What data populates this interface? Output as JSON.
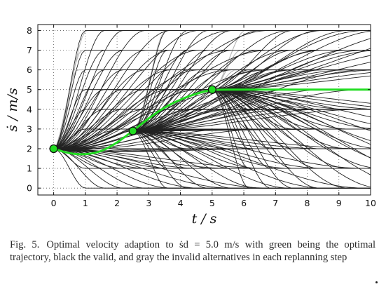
{
  "chart_data": {
    "type": "line",
    "xlabel": "t / s",
    "ylabel": "ṡ / m/s",
    "xlim": [
      -0.5,
      10
    ],
    "ylim": [
      -0.35,
      8.3
    ],
    "xticks": [
      "0",
      "1",
      "2",
      "3",
      "4",
      "5",
      "6",
      "7",
      "8",
      "9",
      "10"
    ],
    "yticks": [
      "0",
      "1",
      "2",
      "3",
      "4",
      "5",
      "6",
      "7",
      "8"
    ],
    "grid": true,
    "colors": {
      "optimal": "#22dd22",
      "valid": "#222222",
      "invalid": "#b4b4b4"
    },
    "optimal_trajectory": {
      "x": [
        0,
        0.5,
        1.0,
        1.5,
        2.0,
        2.5,
        3.0,
        3.5,
        4.0,
        4.5,
        5.0,
        6.0,
        7.0,
        8.0,
        9.0,
        10.0
      ],
      "y": [
        2.0,
        1.75,
        1.7,
        1.85,
        2.3,
        2.9,
        3.55,
        4.1,
        4.5,
        4.8,
        5.0,
        5.0,
        5.0,
        5.0,
        5.0,
        5.0
      ]
    },
    "replanning_points": [
      {
        "x": 0,
        "y": 2.0
      },
      {
        "x": 2.5,
        "y": 2.9
      },
      {
        "x": 5.0,
        "y": 5.0
      }
    ],
    "valid_alternative_targets": [
      0,
      1,
      2,
      3,
      4,
      5,
      6,
      7,
      8
    ],
    "invalid_alternative_targets": [
      5,
      6,
      7,
      8
    ]
  },
  "caption": {
    "label": "Fig. 5.",
    "text": "Optimal velocity adaption to ṡd = 5.0 m/s with green being the optimal trajectory, black the valid, and gray the invalid alternatives in each replanning step"
  }
}
